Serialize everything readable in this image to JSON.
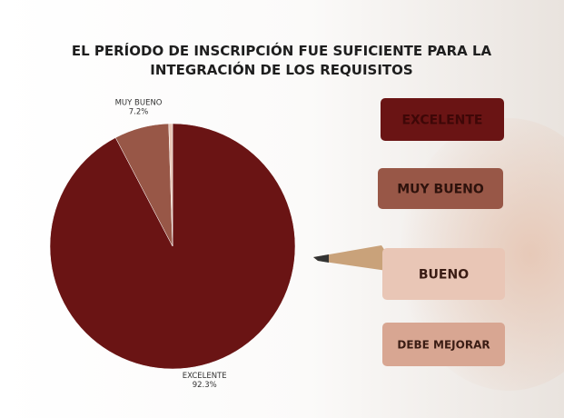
{
  "chart_data": {
    "type": "pie",
    "title": "EL PERÍODO DE INSCRIPCIÓN FUE SUFICIENTE PARA LA INTEGRACIÓN DE LOS REQUISITOS",
    "categories": [
      "EXCELENTE",
      "MUY BUENO",
      "BUENO",
      "DEBE MEJORAR"
    ],
    "values": [
      92.3,
      7.2,
      0.5,
      0
    ],
    "value_labels": [
      "92.3%",
      "7.2%",
      null,
      null
    ],
    "colors": [
      "#6a1414",
      "#985747",
      "#e9c6b6",
      "#d8a692"
    ],
    "legend_text_colors": [
      "#3e0707",
      "#2e120c",
      "#3a1c14",
      "#3a1c14"
    ]
  }
}
